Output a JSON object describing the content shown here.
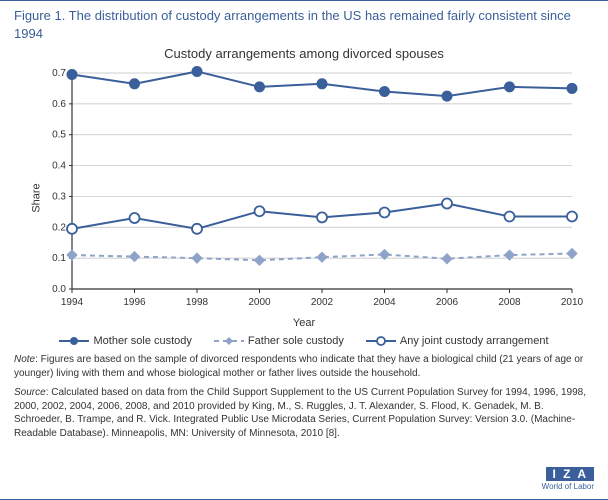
{
  "figure": {
    "title": "Figure 1. The distribution of custody arrangements in the US has remained fairly consistent since 1994",
    "chart_title": "Custody arrangements among divorced spouses",
    "logo_main": "I Z A",
    "logo_sub": "World of Labor"
  },
  "chart": {
    "type": "line",
    "years": [
      1994,
      1996,
      1998,
      2000,
      2002,
      2004,
      2006,
      2008,
      2010
    ],
    "series": [
      {
        "name": "Mother sole custody",
        "values": [
          0.695,
          0.665,
          0.705,
          0.655,
          0.665,
          0.64,
          0.625,
          0.655,
          0.65
        ],
        "color": "#3a5f9a",
        "marker": "filled-circle",
        "line_width": 2,
        "dash": "none"
      },
      {
        "name": "Father sole custody",
        "values": [
          0.11,
          0.105,
          0.1,
          0.093,
          0.103,
          0.112,
          0.098,
          0.11,
          0.115
        ],
        "color": "#8fa3c9",
        "marker": "filled-diamond",
        "line_width": 2,
        "dash": "5,4"
      },
      {
        "name": "Any joint custody arrangement",
        "values": [
          0.195,
          0.23,
          0.195,
          0.252,
          0.232,
          0.248,
          0.277,
          0.235,
          0.235
        ],
        "color": "#3a5f9a",
        "marker": "open-circle",
        "line_width": 2,
        "dash": "none"
      }
    ],
    "ylim": [
      0,
      0.7
    ],
    "ytick_step": 0.1,
    "ylabel": "Share",
    "xlabel": "Year",
    "background_color": "#ffffff",
    "grid_color": "#bfbfbf",
    "axis_color": "#333333",
    "label_fontsize": 11,
    "tick_fontsize": 10,
    "marker_size": 5
  },
  "note": {
    "lead": "Note",
    "text": ": Figures are based on the sample of divorced respondents who indicate that they have a biological child (21 years of age or younger) living with them and whose biological mother or father lives outside the household."
  },
  "source": {
    "lead": "Source",
    "text": ": Calculated based on data from the Child Support Supplement to the US Current Population Survey for 1994, 1996, 1998, 2000, 2002, 2004, 2006, 2008, and 2010 provided by King, M., S. Ruggles, J. T. Alexander, S. Flood, K. Genadek, M. B. Schroeder, B. Trampe, and R. Vick. Integrated Public Use Microdata Series, Current Population Survey: Version 3.0. (Machine-Readable Database). Minneapolis, MN: University of Minnesota, 2010 [8]."
  }
}
